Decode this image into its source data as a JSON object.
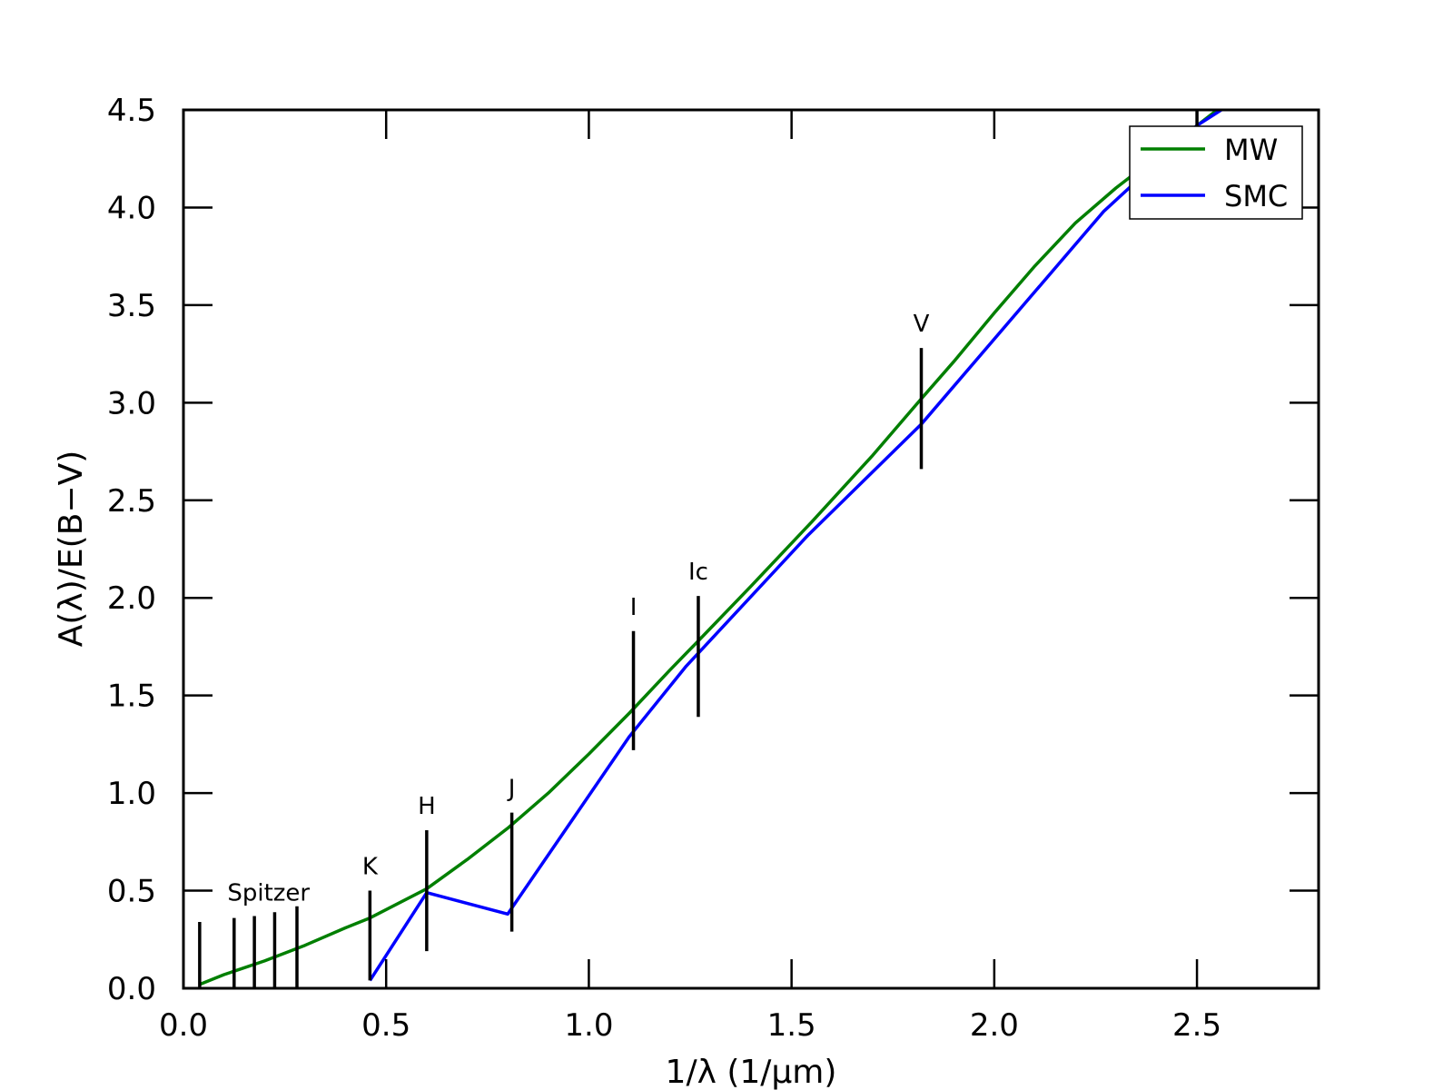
{
  "chart_data": {
    "type": "line",
    "xlabel": "1/λ (1/μm)",
    "ylabel": "A(λ)/E(B−V)",
    "xlim": [
      0.0,
      2.8
    ],
    "ylim": [
      0.0,
      4.5
    ],
    "xticks": [
      "0.0",
      "0.5",
      "1.0",
      "1.5",
      "2.0",
      "2.5"
    ],
    "yticks": [
      "0.0",
      "0.5",
      "1.0",
      "1.5",
      "2.0",
      "2.5",
      "3.0",
      "3.5",
      "4.0",
      "4.5"
    ],
    "grid": false,
    "legend_position": "top-right",
    "series": [
      {
        "name": "MW",
        "color": "#007f00",
        "x": [
          0.04,
          0.1,
          0.2,
          0.3,
          0.4,
          0.46,
          0.6,
          0.7,
          0.8,
          0.9,
          1.0,
          1.1,
          1.2,
          1.27,
          1.4,
          1.55,
          1.7,
          1.82,
          1.9,
          2.0,
          2.1,
          2.2,
          2.3,
          2.4,
          2.5,
          2.6
        ],
        "y": [
          0.02,
          0.07,
          0.14,
          0.22,
          0.31,
          0.36,
          0.51,
          0.66,
          0.82,
          1.0,
          1.2,
          1.41,
          1.63,
          1.78,
          2.06,
          2.39,
          2.73,
          3.02,
          3.21,
          3.46,
          3.7,
          3.92,
          4.1,
          4.26,
          4.42,
          4.58
        ]
      },
      {
        "name": "SMC",
        "color": "#0000ff",
        "x": [
          0.46,
          0.6,
          0.8,
          1.1,
          1.24,
          1.54,
          1.82,
          2.27,
          2.5,
          2.56
        ],
        "y": [
          0.04,
          0.49,
          0.38,
          1.29,
          1.65,
          2.32,
          2.89,
          3.98,
          4.42,
          4.5
        ]
      }
    ],
    "bands": [
      {
        "label": "",
        "x": 0.04,
        "ymin": 0.0,
        "ymax": 0.34
      },
      {
        "label": "",
        "x": 0.125,
        "ymin": 0.0,
        "ymax": 0.36
      },
      {
        "label": "",
        "x": 0.175,
        "ymin": 0.0,
        "ymax": 0.37
      },
      {
        "label": "",
        "x": 0.225,
        "ymin": 0.0,
        "ymax": 0.39
      },
      {
        "label": "",
        "x": 0.28,
        "ymin": 0.0,
        "ymax": 0.42
      },
      {
        "label": "K",
        "x": 0.46,
        "ymin": 0.04,
        "ymax": 0.5
      },
      {
        "label": "H",
        "x": 0.6,
        "ymin": 0.19,
        "ymax": 0.81
      },
      {
        "label": "J",
        "x": 0.81,
        "ymin": 0.29,
        "ymax": 0.9
      },
      {
        "label": "I",
        "x": 1.11,
        "ymin": 1.22,
        "ymax": 1.83
      },
      {
        "label": "Ic",
        "x": 1.27,
        "ymin": 1.39,
        "ymax": 2.01
      },
      {
        "label": "V",
        "x": 1.82,
        "ymin": 2.66,
        "ymax": 3.28
      },
      {
        "label": "",
        "x": 2.5,
        "ymin": 4.4,
        "ymax": 4.5
      }
    ],
    "group_labels": [
      {
        "text": "Spitzer",
        "x": 0.21,
        "y": 0.45
      }
    ]
  }
}
